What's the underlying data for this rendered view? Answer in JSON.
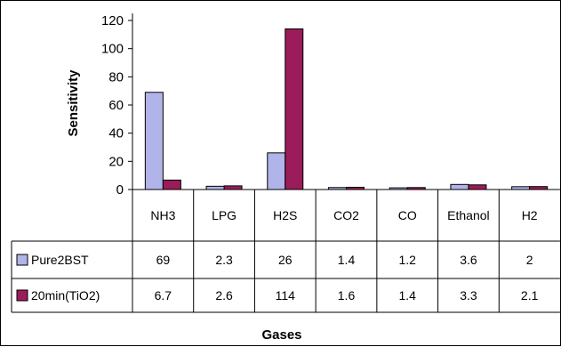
{
  "chart_data": {
    "type": "bar",
    "title": "",
    "xlabel": "Gases",
    "ylabel": "Sensitivity",
    "ylim": [
      0,
      120
    ],
    "yticks": [
      0,
      20,
      40,
      60,
      80,
      100,
      120
    ],
    "grid": false,
    "legend": "in data table, left column",
    "categories": [
      "NH3",
      "LPG",
      "H2S",
      "CO2",
      "CO",
      "Ethanol",
      "H2"
    ],
    "series": [
      {
        "name": "Pure2BST",
        "color": "#b0b4e8",
        "values": [
          69,
          2.3,
          26,
          1.4,
          1.2,
          3.6,
          2
        ]
      },
      {
        "name": "20min(TiO2)",
        "color": "#9b1c5a",
        "values": [
          6.7,
          2.6,
          114,
          1.6,
          1.4,
          3.3,
          2.1
        ]
      }
    ],
    "table_values": [
      [
        "69",
        "2.3",
        "26",
        "1.4",
        "1.2",
        "3.6",
        "2"
      ],
      [
        "6.7",
        "2.6",
        "114",
        "1.6",
        "1.4",
        "3.3",
        "2.1"
      ]
    ]
  }
}
